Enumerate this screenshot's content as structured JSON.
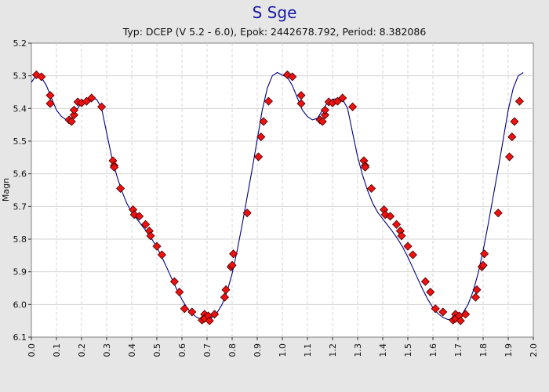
{
  "chart_data": {
    "type": "scatter",
    "title": "S Sge",
    "subtitle": "Typ: DCEP (V 5.2 - 6.0), Epok: 2442678.792, Period: 8.382086",
    "xlabel": "",
    "ylabel": "Magn",
    "xlim": [
      0.0,
      2.0
    ],
    "ylim": [
      5.2,
      6.1
    ],
    "y_inverted": true,
    "x_ticks": [
      "0.0",
      "0.1",
      "0.2",
      "0.3",
      "0.4",
      "0.5",
      "0.6",
      "0.7",
      "0.8",
      "0.9",
      "1.0",
      "1.1",
      "1.2",
      "1.3",
      "1.4",
      "1.5",
      "1.6",
      "1.7",
      "1.8",
      "1.9",
      "2.0"
    ],
    "y_ticks": [
      "5.2",
      "5.3",
      "5.4",
      "5.5",
      "5.6",
      "5.7",
      "5.8",
      "5.9",
      "6.0",
      "6.1"
    ],
    "grid": true,
    "colors": {
      "points": "#ee1111",
      "point_edge": "#440000",
      "curve": "#000080",
      "background": "#ffffff"
    },
    "series": [
      {
        "type": "scatter",
        "x": [
          0.02,
          0.04,
          0.075,
          0.075,
          0.15,
          0.16,
          0.17,
          0.17,
          0.185,
          0.2,
          0.22,
          0.24,
          0.28,
          0.325,
          0.33,
          0.33,
          0.355,
          0.405,
          0.41,
          0.43,
          0.455,
          0.47,
          0.475,
          0.5,
          0.52,
          0.57,
          0.59,
          0.61,
          0.64,
          0.68,
          0.69,
          0.69,
          0.705,
          0.71,
          0.73,
          0.77,
          0.775,
          0.795,
          0.8,
          0.805,
          0.86,
          0.905,
          0.915,
          0.925,
          0.945
        ],
        "y": [
          5.297,
          5.303,
          5.36,
          5.385,
          5.435,
          5.44,
          5.42,
          5.405,
          5.38,
          5.383,
          5.378,
          5.368,
          5.395,
          5.56,
          5.575,
          5.58,
          5.645,
          5.71,
          5.725,
          5.73,
          5.755,
          5.775,
          5.79,
          5.822,
          5.848,
          5.93,
          5.962,
          6.013,
          6.023,
          6.048,
          6.03,
          6.043,
          6.035,
          6.05,
          6.03,
          5.978,
          5.955,
          5.885,
          5.88,
          5.845,
          5.72,
          5.548,
          5.487,
          5.44,
          5.378
        ]
      },
      {
        "type": "line",
        "name": "fit",
        "x": [
          0.0,
          0.02,
          0.04,
          0.06,
          0.08,
          0.1,
          0.12,
          0.14,
          0.16,
          0.18,
          0.2,
          0.22,
          0.24,
          0.26,
          0.28,
          0.3,
          0.32,
          0.34,
          0.36,
          0.38,
          0.4,
          0.42,
          0.44,
          0.46,
          0.48,
          0.5,
          0.52,
          0.54,
          0.56,
          0.58,
          0.6,
          0.62,
          0.64,
          0.66,
          0.68,
          0.7,
          0.72,
          0.74,
          0.76,
          0.78,
          0.8,
          0.82,
          0.84,
          0.86,
          0.88,
          0.9,
          0.92,
          0.94,
          0.96,
          0.98,
          1.0,
          1.02,
          1.04,
          1.06,
          1.08,
          1.1,
          1.12,
          1.14,
          1.16,
          1.18,
          1.2,
          1.22,
          1.24,
          1.26,
          1.28,
          1.3,
          1.32,
          1.34,
          1.36,
          1.38,
          1.4,
          1.42,
          1.44,
          1.46,
          1.48,
          1.5,
          1.52,
          1.54,
          1.56,
          1.58,
          1.6,
          1.62,
          1.64,
          1.66,
          1.68,
          1.7,
          1.72,
          1.74,
          1.76,
          1.78,
          1.8,
          1.82,
          1.84,
          1.86,
          1.88,
          1.9,
          1.92,
          1.94,
          1.96
        ],
        "y": [
          5.32,
          5.298,
          5.305,
          5.33,
          5.368,
          5.405,
          5.425,
          5.435,
          5.43,
          5.405,
          5.382,
          5.372,
          5.37,
          5.372,
          5.4,
          5.475,
          5.548,
          5.605,
          5.652,
          5.69,
          5.718,
          5.738,
          5.758,
          5.778,
          5.8,
          5.825,
          5.855,
          5.888,
          5.922,
          5.955,
          5.985,
          6.01,
          6.028,
          6.04,
          6.046,
          6.047,
          6.04,
          6.025,
          6.0,
          5.96,
          5.905,
          5.835,
          5.755,
          5.67,
          5.585,
          5.495,
          5.405,
          5.338,
          5.3,
          5.29,
          5.298,
          5.305,
          5.33,
          5.368,
          5.405,
          5.425,
          5.435,
          5.43,
          5.405,
          5.382,
          5.372,
          5.37,
          5.372,
          5.4,
          5.475,
          5.548,
          5.605,
          5.652,
          5.69,
          5.718,
          5.738,
          5.758,
          5.778,
          5.8,
          5.825,
          5.855,
          5.888,
          5.922,
          5.955,
          5.985,
          6.01,
          6.028,
          6.04,
          6.046,
          6.047,
          6.04,
          6.025,
          6.0,
          5.96,
          5.905,
          5.835,
          5.755,
          5.67,
          5.585,
          5.495,
          5.405,
          5.338,
          5.3,
          5.29
        ]
      }
    ]
  }
}
